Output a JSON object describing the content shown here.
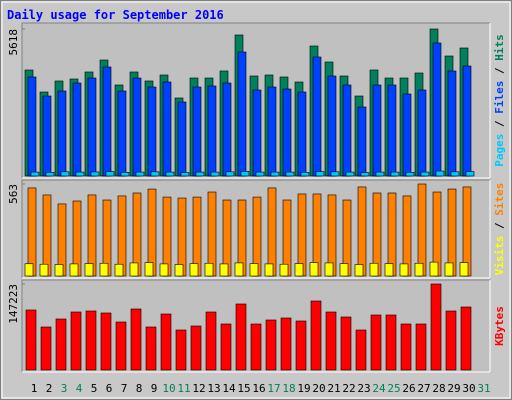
{
  "chart_data": [
    {
      "type": "bar",
      "title": "Daily usage for September 2016",
      "ylim": [
        0,
        5618
      ],
      "yticks": [
        5618
      ],
      "legend_separator": " / ",
      "series": [
        {
          "name": "Hits",
          "color": "#00805c",
          "values": [
            4051,
            3210,
            3631,
            3707,
            3975,
            4433,
            3478,
            3975,
            3631,
            3860,
            2981,
            3745,
            3745,
            4013,
            5389,
            3822,
            3860,
            3784,
            3592,
            4968,
            4357,
            3822,
            3057,
            4051,
            3745,
            3745,
            3936,
            5618,
            4586,
            4892,
            null
          ]
        },
        {
          "name": "Files",
          "color": "#0040ff",
          "values": [
            3784,
            3057,
            3249,
            3554,
            3745,
            4166,
            3249,
            3745,
            3401,
            3593,
            2828,
            3401,
            3440,
            3554,
            4739,
            3287,
            3401,
            3325,
            3210,
            4548,
            3822,
            3478,
            2637,
            3478,
            3478,
            3134,
            3287,
            5083,
            4013,
            4204,
            null
          ]
        },
        {
          "name": "Pages",
          "color": "#00c8ff",
          "values": [
            150,
            140,
            160,
            150,
            155,
            170,
            140,
            150,
            160,
            150,
            130,
            150,
            150,
            160,
            180,
            150,
            150,
            150,
            140,
            170,
            160,
            150,
            130,
            150,
            150,
            140,
            150,
            190,
            160,
            170,
            null
          ]
        }
      ]
    },
    {
      "type": "bar",
      "ylim": [
        0,
        563
      ],
      "yticks": [
        563
      ],
      "legend_separator": " / ",
      "series": [
        {
          "name": "Sites",
          "color": "#ff8000",
          "values": [
            539,
            496,
            441,
            459,
            496,
            465,
            490,
            508,
            532,
            483,
            477,
            483,
            514,
            465,
            465,
            483,
            539,
            465,
            502,
            502,
            496,
            465,
            545,
            508,
            508,
            490,
            563,
            514,
            532,
            545,
            null
          ]
        },
        {
          "name": "Visits",
          "color": "#ffff00",
          "values": [
            75,
            72,
            70,
            74,
            76,
            78,
            72,
            80,
            82,
            74,
            70,
            76,
            78,
            74,
            80,
            76,
            74,
            72,
            76,
            82,
            80,
            76,
            70,
            78,
            76,
            74,
            78,
            85,
            80,
            82,
            null
          ]
        }
      ]
    },
    {
      "type": "bar",
      "ylim": [
        0,
        147223
      ],
      "yticks": [
        147223
      ],
      "series": [
        {
          "name": "KBytes",
          "color": "#ff0000",
          "values": [
            102720,
            73611,
            87307,
            99291,
            101003,
            97579,
            82171,
            104425,
            73611,
            95867,
            68475,
            75323,
            99291,
            78747,
            112985,
            78747,
            85594,
            89019,
            83883,
            118123,
            99291,
            90731,
            68475,
            94155,
            94155,
            78747,
            78747,
            147223,
            101003,
            107851,
            null
          ]
        }
      ],
      "categories": [
        "1",
        "2",
        "3",
        "4",
        "5",
        "6",
        "7",
        "8",
        "9",
        "10",
        "11",
        "12",
        "13",
        "14",
        "15",
        "16",
        "17",
        "18",
        "19",
        "20",
        "21",
        "22",
        "23",
        "24",
        "25",
        "26",
        "27",
        "28",
        "29",
        "30",
        "31"
      ],
      "category_colors": [
        "#000000",
        "#000000",
        "#00805c",
        "#00805c",
        "#000000",
        "#000000",
        "#000000",
        "#000000",
        "#000000",
        "#00805c",
        "#00805c",
        "#000000",
        "#000000",
        "#000000",
        "#000000",
        "#000000",
        "#00805c",
        "#00805c",
        "#000000",
        "#000000",
        "#000000",
        "#000000",
        "#000000",
        "#00805c",
        "#00805c",
        "#000000",
        "#000000",
        "#000000",
        "#000000",
        "#000000",
        "#00805c"
      ]
    }
  ]
}
